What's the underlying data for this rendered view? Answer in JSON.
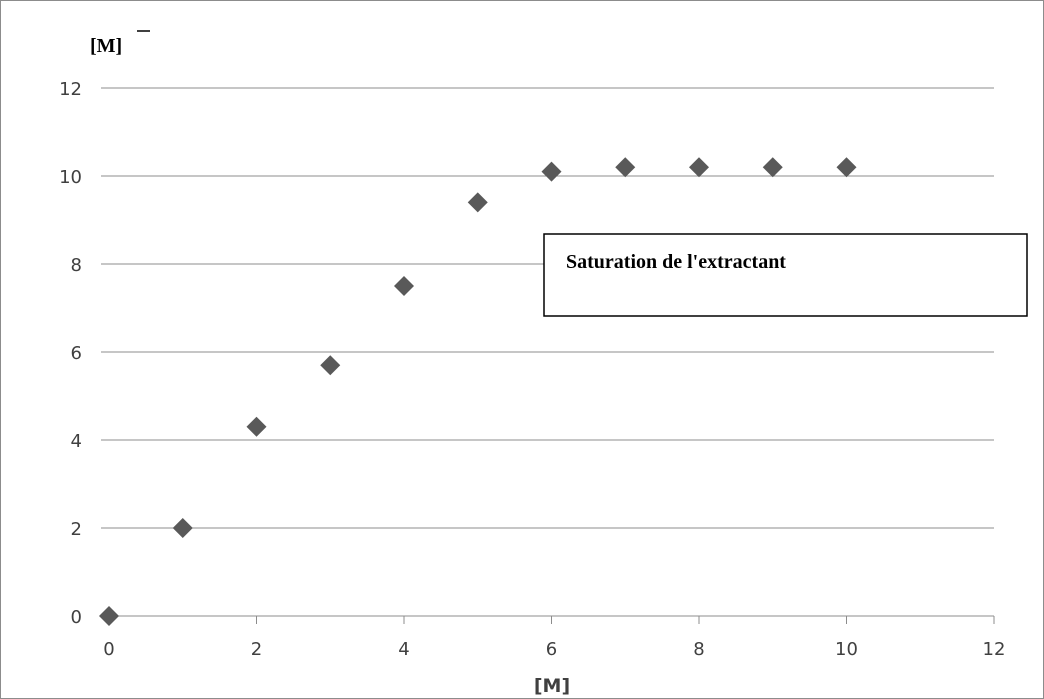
{
  "chart_data": {
    "type": "scatter",
    "title": "",
    "xlabel": "[M]",
    "ylabel": "[M]",
    "xlim": [
      0,
      12
    ],
    "ylim": [
      0,
      12
    ],
    "x_ticks": [
      "0",
      "2",
      "4",
      "6",
      "8",
      "10",
      "12"
    ],
    "y_ticks": [
      "0",
      "2",
      "4",
      "6",
      "8",
      "10",
      "12"
    ],
    "grid": "horizontal",
    "legend": "none",
    "marker": "diamond",
    "marker_color": "#595959",
    "series": [
      {
        "points": [
          {
            "x": 0,
            "y": 0
          },
          {
            "x": 1,
            "y": 2.0
          },
          {
            "x": 2,
            "y": 4.3
          },
          {
            "x": 3,
            "y": 5.7
          },
          {
            "x": 4,
            "y": 7.5
          },
          {
            "x": 5,
            "y": 9.4
          },
          {
            "x": 6,
            "y": 10.1
          },
          {
            "x": 7,
            "y": 10.2
          },
          {
            "x": 8,
            "y": 10.2
          },
          {
            "x": 9,
            "y": 10.2
          },
          {
            "x": 10,
            "y": 10.2
          }
        ]
      }
    ],
    "annotation": "Saturation de l'extractant"
  }
}
